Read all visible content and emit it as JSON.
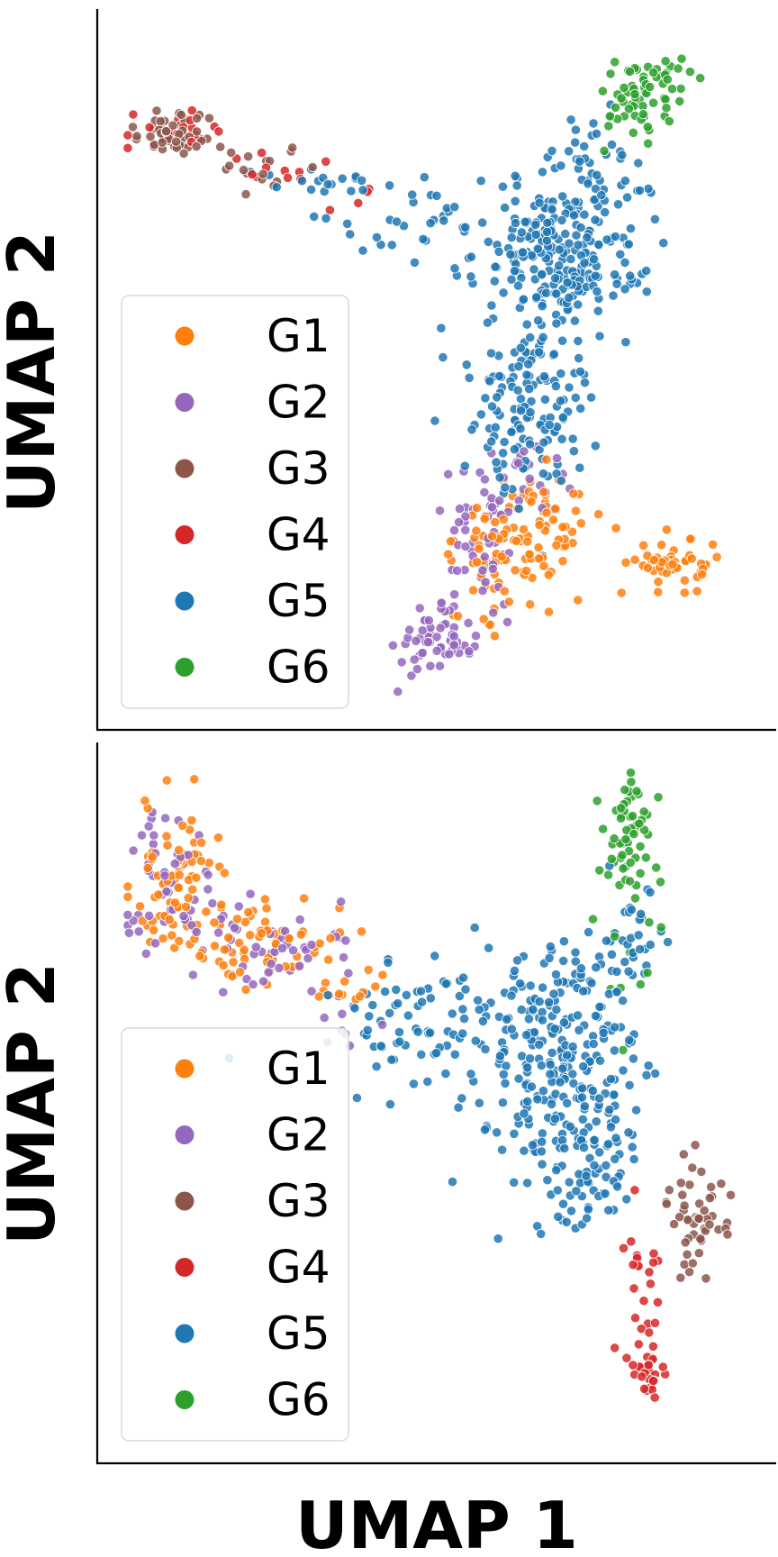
{
  "chart_data": [
    {
      "type": "scatter",
      "title": "",
      "xlabel": "",
      "ylabel": "UMAP 2",
      "xticks": [],
      "yticks": [],
      "grid": false,
      "legend": {
        "position": "lower-left",
        "entries": [
          "G1",
          "G2",
          "G3",
          "G4",
          "G5",
          "G6"
        ]
      },
      "xlim": [
        0,
        100
      ],
      "ylim": [
        0,
        100
      ],
      "series": [
        {
          "name": "G1",
          "color": "#ff7f0e",
          "clusters": [
            {
              "x": 65,
              "y": 25,
              "sx": 6,
              "sy": 4.5,
              "n": 90
            },
            {
              "x": 89,
              "y": 20,
              "sx": 3.5,
              "sy": 2,
              "n": 50
            },
            {
              "x": 57,
              "y": 22,
              "sx": 3,
              "sy": 4,
              "n": 25
            }
          ]
        },
        {
          "name": "G2",
          "color": "#9467bd",
          "clusters": [
            {
              "x": 50,
              "y": 8,
              "sx": 3,
              "sy": 2.5,
              "n": 55
            },
            {
              "x": 57,
              "y": 21,
              "sx": 3.5,
              "sy": 6,
              "n": 50
            },
            {
              "x": 64,
              "y": 33,
              "sx": 3.5,
              "sy": 3,
              "n": 25
            }
          ]
        },
        {
          "name": "G3",
          "color": "#8c564b",
          "clusters": [
            {
              "x": 9,
              "y": 85.5,
              "sx": 4.5,
              "sy": 1.6,
              "n": 55
            },
            {
              "x": 23,
              "y": 80,
              "sx": 3.5,
              "sy": 1.5,
              "n": 15
            }
          ]
        },
        {
          "name": "G4",
          "color": "#d62728",
          "clusters": [
            {
              "x": 9,
              "y": 85.5,
              "sx": 4.5,
              "sy": 1.8,
              "n": 18
            },
            {
              "x": 24,
              "y": 80,
              "sx": 4,
              "sy": 1.5,
              "n": 10
            },
            {
              "x": 37,
              "y": 76,
              "sx": 2,
              "sy": 1,
              "n": 4
            }
          ]
        },
        {
          "name": "G5",
          "color": "#1f77b4",
          "clusters": [
            {
              "x": 70,
              "y": 67,
              "sx": 6.5,
              "sy": 6,
              "n": 250
            },
            {
              "x": 66,
              "y": 45,
              "sx": 5,
              "sy": 7,
              "n": 140
            },
            {
              "x": 45,
              "y": 72,
              "sx": 6,
              "sy": 2.5,
              "n": 30
            },
            {
              "x": 33,
              "y": 77,
              "sx": 5,
              "sy": 1.5,
              "n": 18
            },
            {
              "x": 76,
              "y": 82,
              "sx": 4,
              "sy": 4,
              "n": 35
            }
          ]
        },
        {
          "name": "G6",
          "color": "#2ca02c",
          "clusters": [
            {
              "x": 85,
              "y": 93,
              "sx": 3,
              "sy": 2.8,
              "n": 50
            },
            {
              "x": 81,
              "y": 87,
              "sx": 2.5,
              "sy": 3,
              "n": 18
            }
          ]
        }
      ]
    },
    {
      "type": "scatter",
      "title": "",
      "xlabel": "UMAP 1",
      "ylabel": "UMAP 2",
      "xticks": [],
      "yticks": [],
      "grid": false,
      "legend": {
        "position": "lower-left",
        "entries": [
          "G1",
          "G2",
          "G3",
          "G4",
          "G5",
          "G6"
        ]
      },
      "xlim": [
        0,
        100
      ],
      "ylim": [
        0,
        100
      ],
      "series": [
        {
          "name": "G1",
          "color": "#ff7f0e",
          "clusters": [
            {
              "x": 9,
              "y": 82,
              "sx": 4,
              "sy": 6,
              "n": 80
            },
            {
              "x": 24,
              "y": 73,
              "sx": 6,
              "sy": 3.5,
              "n": 60
            },
            {
              "x": 36,
              "y": 66,
              "sx": 3,
              "sy": 3,
              "n": 12
            }
          ]
        },
        {
          "name": "G2",
          "color": "#9467bd",
          "clusters": [
            {
              "x": 9,
              "y": 82,
              "sx": 4,
              "sy": 6,
              "n": 55
            },
            {
              "x": 25,
              "y": 73,
              "sx": 6,
              "sy": 3.5,
              "n": 45
            },
            {
              "x": 37,
              "y": 63,
              "sx": 2.5,
              "sy": 3,
              "n": 8
            }
          ]
        },
        {
          "name": "G3",
          "color": "#8c564b",
          "clusters": [
            {
              "x": 92,
              "y": 33,
              "sx": 2.2,
              "sy": 5,
              "n": 50
            }
          ]
        },
        {
          "name": "G4",
          "color": "#d62728",
          "clusters": [
            {
              "x": 84,
              "y": 10,
              "sx": 1.5,
              "sy": 3.5,
              "n": 30
            },
            {
              "x": 82,
              "y": 24,
              "sx": 2,
              "sy": 4,
              "n": 18
            }
          ]
        },
        {
          "name": "G5",
          "color": "#1f77b4",
          "clusters": [
            {
              "x": 70,
              "y": 56,
              "sx": 6,
              "sy": 9,
              "n": 260
            },
            {
              "x": 48,
              "y": 61,
              "sx": 7,
              "sy": 5,
              "n": 80
            },
            {
              "x": 77,
              "y": 45,
              "sx": 3,
              "sy": 6,
              "n": 40
            },
            {
              "x": 73,
              "y": 37,
              "sx": 5,
              "sy": 3.5,
              "n": 30
            },
            {
              "x": 81,
              "y": 74,
              "sx": 2.5,
              "sy": 4.5,
              "n": 30
            }
          ]
        },
        {
          "name": "G6",
          "color": "#2ca02c",
          "clusters": [
            {
              "x": 81,
              "y": 90,
              "sx": 2,
              "sy": 4.5,
              "n": 55
            },
            {
              "x": 81,
              "y": 72,
              "sx": 2.5,
              "sy": 6,
              "n": 15
            }
          ]
        }
      ]
    }
  ]
}
